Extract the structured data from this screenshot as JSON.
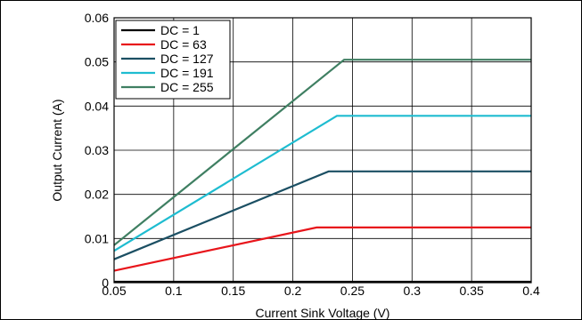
{
  "chart_data": {
    "type": "line",
    "title": "",
    "xlabel": "Current Sink Voltage (V)",
    "ylabel": "Output Current (A)",
    "xlim": [
      0.05,
      0.4
    ],
    "ylim": [
      0,
      0.06
    ],
    "xticks": [
      0.05,
      0.1,
      0.15,
      0.2,
      0.25,
      0.3,
      0.35,
      0.4
    ],
    "xtick_labels": [
      "0.05",
      "0.1",
      "0.15",
      "0.2",
      "0.25",
      "0.3",
      "0.35",
      "0.4"
    ],
    "yticks": [
      0,
      0.01,
      0.02,
      0.03,
      0.04,
      0.05,
      0.06
    ],
    "ytick_labels": [
      "0",
      "0.01",
      "0.02",
      "0.03",
      "0.04",
      "0.05",
      "0.06"
    ],
    "grid": true,
    "legend_position": "top-left",
    "series": [
      {
        "name": "DC = 1",
        "color": "#000000",
        "x": [
          0.05,
          0.4
        ],
        "y": [
          0.0002,
          0.0002
        ]
      },
      {
        "name": "DC = 63",
        "color": "#e8151b",
        "x": [
          0.05,
          0.22,
          0.4
        ],
        "y": [
          0.0027,
          0.0125,
          0.0125
        ]
      },
      {
        "name": "DC = 127",
        "color": "#1b4f63",
        "x": [
          0.05,
          0.23,
          0.4
        ],
        "y": [
          0.0053,
          0.0252,
          0.0252
        ]
      },
      {
        "name": "DC = 191",
        "color": "#1ebcd0",
        "x": [
          0.05,
          0.237,
          0.4
        ],
        "y": [
          0.0072,
          0.0378,
          0.0378
        ]
      },
      {
        "name": "DC = 255",
        "color": "#3f7f62",
        "x": [
          0.05,
          0.243,
          0.4
        ],
        "y": [
          0.0085,
          0.0505,
          0.0505
        ]
      }
    ]
  }
}
